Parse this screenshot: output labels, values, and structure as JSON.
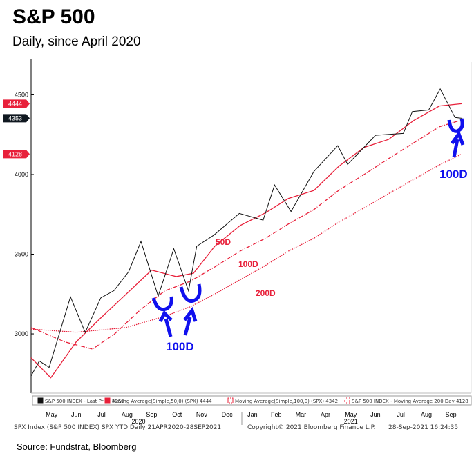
{
  "header": {
    "title": "S&P 500",
    "subtitle": "Daily, since April 2020"
  },
  "chart_data": {
    "type": "line",
    "title": "S&P 500",
    "subtitle": "Daily, since April 2020",
    "ylim": [
      2628,
      4727
    ],
    "yticks": [
      3000,
      3500,
      4000,
      4500
    ],
    "xrange": [
      "2020-04-21",
      "2021-09-28"
    ],
    "xticks": [
      {
        "label": "May",
        "date": "2020-05-16"
      },
      {
        "label": "Jun",
        "date": "2020-06-15"
      },
      {
        "label": "Jul",
        "date": "2020-07-16"
      },
      {
        "label": "Aug",
        "date": "2020-08-16"
      },
      {
        "label": "Sep",
        "date": "2020-09-15"
      },
      {
        "label": "Oct",
        "date": "2020-10-16"
      },
      {
        "label": "Nov",
        "date": "2020-11-15"
      },
      {
        "label": "Dec",
        "date": "2020-12-16"
      },
      {
        "label": "Jan",
        "date": "2021-01-16"
      },
      {
        "label": "Feb",
        "date": "2021-02-14"
      },
      {
        "label": "Mar",
        "date": "2021-03-16"
      },
      {
        "label": "Apr",
        "date": "2021-04-15"
      },
      {
        "label": "May",
        "date": "2021-05-16"
      },
      {
        "label": "Jun",
        "date": "2021-06-15"
      },
      {
        "label": "Jul",
        "date": "2021-07-16"
      },
      {
        "label": "Aug",
        "date": "2021-08-16"
      },
      {
        "label": "Sep",
        "date": "2021-09-15"
      }
    ],
    "year_labels": [
      {
        "label": "2020",
        "date": "2020-08-30"
      },
      {
        "label": "2021",
        "date": "2021-05-16"
      }
    ],
    "price_tags": [
      {
        "value": 4444,
        "label": "4444",
        "color": "#e8203a"
      },
      {
        "value": 4353,
        "label": "4353",
        "color": "#101820"
      },
      {
        "value": 4128,
        "label": "4128",
        "color": "#e8203a"
      }
    ],
    "series": [
      {
        "name": "S&P 500 INDEX - Last Price",
        "last": "4353",
        "color": "#111111",
        "style": "solid",
        "points": [
          [
            "2020-04-21",
            2736
          ],
          [
            "2020-05-01",
            2830
          ],
          [
            "2020-05-13",
            2790
          ],
          [
            "2020-06-08",
            3232
          ],
          [
            "2020-06-26",
            3009
          ],
          [
            "2020-07-15",
            3226
          ],
          [
            "2020-07-31",
            3271
          ],
          [
            "2020-08-18",
            3390
          ],
          [
            "2020-09-02",
            3580
          ],
          [
            "2020-09-23",
            3237
          ],
          [
            "2020-10-12",
            3534
          ],
          [
            "2020-10-30",
            3270
          ],
          [
            "2020-11-09",
            3550
          ],
          [
            "2020-11-30",
            3620
          ],
          [
            "2020-12-31",
            3756
          ],
          [
            "2021-01-29",
            3714
          ],
          [
            "2021-02-12",
            3934
          ],
          [
            "2021-03-04",
            3768
          ],
          [
            "2021-04-01",
            4020
          ],
          [
            "2021-04-30",
            4181
          ],
          [
            "2021-05-12",
            4063
          ],
          [
            "2021-06-15",
            4246
          ],
          [
            "2021-07-19",
            4258
          ],
          [
            "2021-07-30",
            4395
          ],
          [
            "2021-08-19",
            4405
          ],
          [
            "2021-09-02",
            4537
          ],
          [
            "2021-09-20",
            4358
          ],
          [
            "2021-09-28",
            4353
          ]
        ]
      },
      {
        "name": "Moving Average(Simple,50,0) (SPX)",
        "last": "4444",
        "color": "#e8203a",
        "style": "solid",
        "points": [
          [
            "2020-04-21",
            2850
          ],
          [
            "2020-05-15",
            2725
          ],
          [
            "2020-06-15",
            2950
          ],
          [
            "2020-07-15",
            3100
          ],
          [
            "2020-08-15",
            3250
          ],
          [
            "2020-09-15",
            3400
          ],
          [
            "2020-10-15",
            3360
          ],
          [
            "2020-11-05",
            3380
          ],
          [
            "2020-12-01",
            3550
          ],
          [
            "2021-01-01",
            3680
          ],
          [
            "2021-02-01",
            3760
          ],
          [
            "2021-03-01",
            3850
          ],
          [
            "2021-04-01",
            3900
          ],
          [
            "2021-05-01",
            4050
          ],
          [
            "2021-06-01",
            4170
          ],
          [
            "2021-07-01",
            4220
          ],
          [
            "2021-08-01",
            4340
          ],
          [
            "2021-09-01",
            4430
          ],
          [
            "2021-09-28",
            4444
          ]
        ]
      },
      {
        "name": "Moving Average(Simple,100,0) (SPX)",
        "last": "4342",
        "color": "#e8203a",
        "style": "dashed",
        "points": [
          [
            "2020-04-21",
            3040
          ],
          [
            "2020-06-01",
            2950
          ],
          [
            "2020-07-05",
            2905
          ],
          [
            "2020-08-01",
            3000
          ],
          [
            "2020-09-01",
            3150
          ],
          [
            "2020-10-01",
            3270
          ],
          [
            "2020-11-01",
            3330
          ],
          [
            "2020-12-01",
            3420
          ],
          [
            "2021-01-01",
            3520
          ],
          [
            "2021-02-01",
            3600
          ],
          [
            "2021-03-01",
            3690
          ],
          [
            "2021-04-01",
            3780
          ],
          [
            "2021-05-01",
            3900
          ],
          [
            "2021-06-01",
            4000
          ],
          [
            "2021-07-01",
            4100
          ],
          [
            "2021-08-01",
            4200
          ],
          [
            "2021-09-01",
            4300
          ],
          [
            "2021-09-28",
            4342
          ]
        ]
      },
      {
        "name": "S&P 500 INDEX - Moving Average 200 Day",
        "last": "4128",
        "color": "#e8203a",
        "style": "dotted",
        "points": [
          [
            "2020-04-21",
            3030
          ],
          [
            "2020-06-15",
            3010
          ],
          [
            "2020-08-15",
            3040
          ],
          [
            "2020-10-01",
            3110
          ],
          [
            "2020-11-01",
            3170
          ],
          [
            "2020-12-01",
            3250
          ],
          [
            "2021-01-01",
            3340
          ],
          [
            "2021-02-01",
            3430
          ],
          [
            "2021-03-01",
            3520
          ],
          [
            "2021-04-01",
            3600
          ],
          [
            "2021-05-01",
            3700
          ],
          [
            "2021-06-01",
            3790
          ],
          [
            "2021-07-01",
            3880
          ],
          [
            "2021-08-01",
            3970
          ],
          [
            "2021-09-01",
            4060
          ],
          [
            "2021-09-28",
            4128
          ]
        ]
      }
    ],
    "annotations": [
      {
        "text": "50D",
        "color": "#e8203a"
      },
      {
        "text": "100D",
        "color": "#e8203a"
      },
      {
        "text": "200D",
        "color": "#e8203a"
      },
      {
        "text": "100D",
        "color": "#1010ee"
      },
      {
        "text": "100D",
        "color": "#1010ee"
      }
    ]
  },
  "footer": {
    "left": "SPX Index (S&P 500 INDEX) SPX YTD  Daily 21APR2020-28SEP2021",
    "center": "Copyright© 2021 Bloomberg Finance L.P.",
    "right": "28-Sep-2021 16:24:35"
  },
  "source": "Source: Fundstrat,  Bloomberg"
}
